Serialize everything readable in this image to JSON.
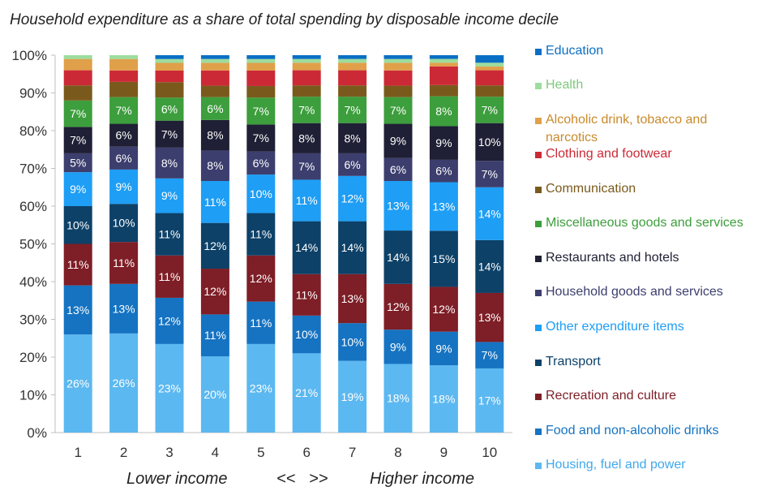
{
  "chart_data": {
    "type": "bar",
    "stacked": true,
    "title": "Household expenditure as a share of total spending by disposable income decile",
    "categories": [
      "1",
      "2",
      "3",
      "4",
      "5",
      "6",
      "7",
      "8",
      "9",
      "10"
    ],
    "ylim": [
      0,
      100
    ],
    "y_ticks": [
      "0%",
      "10%",
      "20%",
      "30%",
      "40%",
      "50%",
      "60%",
      "70%",
      "80%",
      "90%",
      "100%"
    ],
    "x_annotations": {
      "left": "Lower income",
      "middle": "<<   >>",
      "right": "Higher income"
    },
    "legend_position": "right",
    "series": [
      {
        "name": "Housing, fuel and power",
        "color": "#5CB8F0",
        "label_color": "#ffffff",
        "values": [
          26,
          26,
          23,
          20,
          23,
          21,
          19,
          18,
          18,
          17
        ],
        "labels": [
          "26%",
          "26%",
          "23%",
          "20%",
          "23%",
          "21%",
          "19%",
          "18%",
          "18%",
          "17%"
        ]
      },
      {
        "name": "Food and non-alcoholic drinks",
        "color": "#1573C2",
        "label_color": "#ffffff",
        "values": [
          13,
          13,
          12,
          11,
          11,
          10,
          10,
          9,
          9,
          7
        ],
        "labels": [
          "13%",
          "13%",
          "12%",
          "11%",
          "11%",
          "10%",
          "10%",
          "9%",
          "9%",
          "7%"
        ]
      },
      {
        "name": "Recreation and culture",
        "color": "#7E1E26",
        "label_color": "#ffffff",
        "values": [
          11,
          11,
          11,
          12,
          12,
          11,
          13,
          12,
          12,
          13
        ],
        "labels": [
          "11%",
          "11%",
          "11%",
          "12%",
          "12%",
          "11%",
          "13%",
          "12%",
          "12%",
          "13%"
        ]
      },
      {
        "name": "Transport",
        "color": "#0D4168",
        "label_color": "#ffffff",
        "values": [
          10,
          10,
          11,
          12,
          11,
          14,
          14,
          14,
          15,
          14
        ],
        "labels": [
          "10%",
          "10%",
          "11%",
          "12%",
          "11%",
          "14%",
          "14%",
          "14%",
          "15%",
          "14%"
        ]
      },
      {
        "name": "Other expenditure items",
        "color": "#1E9EF5",
        "label_color": "#ffffff",
        "values": [
          9,
          9,
          9,
          11,
          10,
          11,
          12,
          13,
          13,
          14
        ],
        "labels": [
          "9%",
          "9%",
          "9%",
          "11%",
          "10%",
          "11%",
          "12%",
          "13%",
          "13%",
          "14%"
        ]
      },
      {
        "name": "Household goods and services",
        "color": "#3C3E6E",
        "label_color": "#ffffff",
        "values": [
          5,
          6,
          8,
          8,
          6,
          7,
          6,
          6,
          6,
          7
        ],
        "labels": [
          "5%",
          "6%",
          "8%",
          "8%",
          "6%",
          "7%",
          "6%",
          "6%",
          "6%",
          "7%"
        ]
      },
      {
        "name": "Restaurants and hotels",
        "color": "#1F1F35",
        "label_color": "#ffffff",
        "values": [
          7,
          6,
          7,
          8,
          7,
          8,
          8,
          9,
          9,
          10
        ],
        "labels": [
          "7%",
          "6%",
          "7%",
          "8%",
          "7%",
          "8%",
          "8%",
          "9%",
          "9%",
          "10%"
        ]
      },
      {
        "name": "Miscellaneous goods and services",
        "color": "#3C9E3C",
        "label_color": "#ffffff",
        "values": [
          7,
          7,
          6,
          6,
          7,
          7,
          7,
          7,
          8,
          7
        ],
        "labels": [
          "7%",
          "7%",
          "6%",
          "6%",
          "7%",
          "7%",
          "7%",
          "7%",
          "8%",
          "7%"
        ]
      },
      {
        "name": "Communication",
        "color": "#7A5A1C",
        "label_color": "#ffffff",
        "values": [
          4,
          4,
          4,
          3,
          3,
          3,
          3,
          3,
          3,
          3
        ],
        "labels": [
          "",
          "",
          "",
          "",
          "",
          "",
          "",
          "",
          "",
          ""
        ]
      },
      {
        "name": "Clothing and footwear",
        "color": "#CC2936",
        "label_color": "#ffffff",
        "values": [
          4,
          3,
          3,
          4,
          4,
          4,
          4,
          4,
          5,
          4
        ],
        "labels": [
          "",
          "",
          "",
          "",
          "",
          "",
          "",
          "",
          "",
          ""
        ]
      },
      {
        "name": "Alcoholic drink, tobacco and narcotics",
        "color": "#E0A04A",
        "label_color": "#ffffff",
        "values": [
          3,
          3,
          2,
          2,
          2,
          2,
          2,
          2,
          1,
          1
        ],
        "labels": [
          "",
          "",
          "",
          "",
          "",
          "",
          "",
          "",
          "",
          ""
        ]
      },
      {
        "name": "Health",
        "color": "#9DDC9D",
        "label_color": "#ffffff",
        "values": [
          1,
          1,
          1,
          1,
          1,
          1,
          1,
          1,
          1,
          1
        ],
        "labels": [
          "",
          "",
          "",
          "",
          "",
          "",
          "",
          "",
          "",
          ""
        ]
      },
      {
        "name": "Education",
        "color": "#0A6FC4",
        "label_color": "#ffffff",
        "values": [
          0,
          0,
          1,
          1,
          1,
          1,
          1,
          1,
          1,
          2
        ],
        "labels": [
          "",
          "",
          "",
          "",
          "",
          "",
          "",
          "",
          "",
          ""
        ]
      }
    ],
    "legend_order": [
      {
        "name": "Education",
        "color": "#0A6FC4",
        "text_color": "#0A6FC4"
      },
      {
        "name": "Health",
        "color": "#9DDC9D",
        "text_color": "#7CC97C"
      },
      {
        "name": "Alcoholic drink, tobacco and narcotics",
        "color": "#E0A04A",
        "text_color": "#C98A2C"
      },
      {
        "name": "Clothing and footwear",
        "color": "#CC2936",
        "text_color": "#CC2936"
      },
      {
        "name": "Communication",
        "color": "#7A5A1C",
        "text_color": "#7A5A1C"
      },
      {
        "name": "Miscellaneous goods and services",
        "color": "#3C9E3C",
        "text_color": "#3C9E3C"
      },
      {
        "name": "Restaurants and hotels",
        "color": "#1F1F35",
        "text_color": "#1F1F35"
      },
      {
        "name": "Household goods and services",
        "color": "#3C3E6E",
        "text_color": "#3C3E6E"
      },
      {
        "name": "Other expenditure items",
        "color": "#1E9EF5",
        "text_color": "#1E9EF5"
      },
      {
        "name": "Transport",
        "color": "#0D4168",
        "text_color": "#0D4168"
      },
      {
        "name": "Recreation and culture",
        "color": "#7E1E26",
        "text_color": "#7E1E26"
      },
      {
        "name": "Food and non-alcoholic drinks",
        "color": "#1573C2",
        "text_color": "#1573C2"
      },
      {
        "name": "Housing, fuel and power",
        "color": "#5CB8F0",
        "text_color": "#3FA8EC"
      }
    ]
  }
}
